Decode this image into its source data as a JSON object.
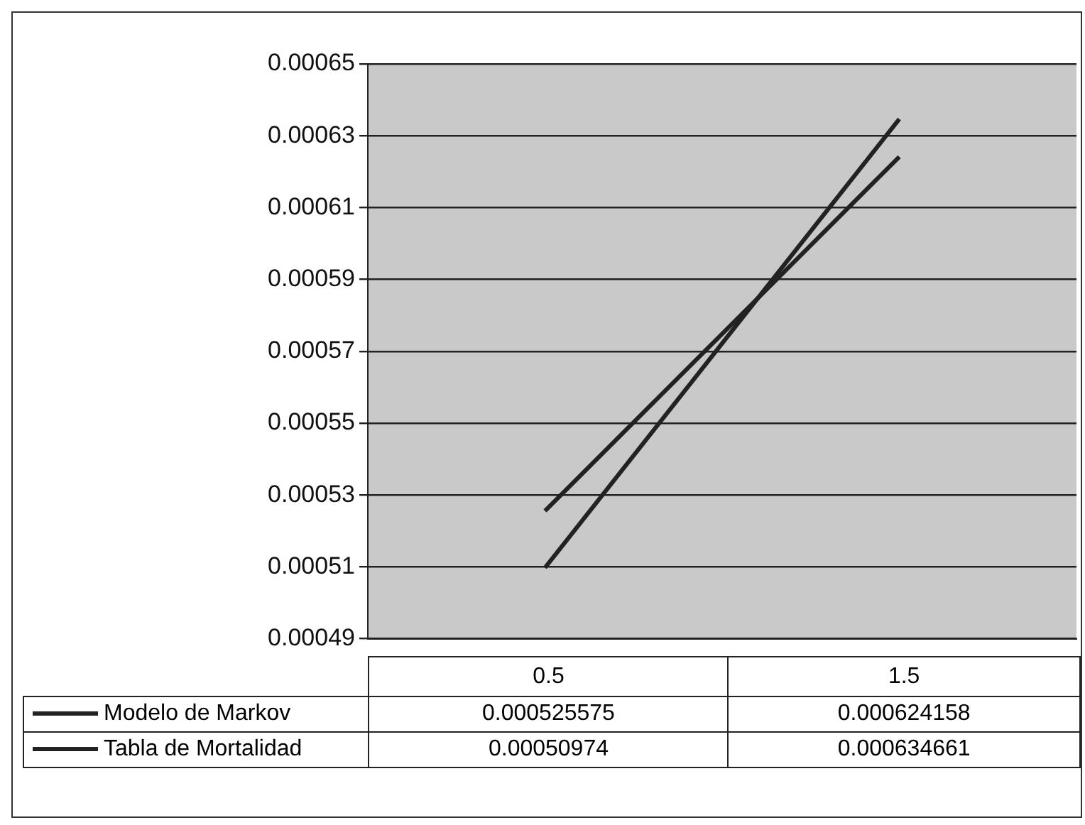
{
  "chart_data": {
    "type": "line",
    "categories": [
      "0.5",
      "1.5"
    ],
    "series": [
      {
        "name": "Modelo de Markov",
        "color": "#222222",
        "values": [
          0.000525575,
          0.000624158
        ]
      },
      {
        "name": "Tabla de Mortalidad",
        "color": "#222222",
        "values": [
          0.00050974,
          0.000634661
        ]
      }
    ],
    "ylim": [
      0.00049,
      0.00065
    ],
    "yticks": [
      {
        "value": 0.00049,
        "label": "0.00049"
      },
      {
        "value": 0.00051,
        "label": "0.00051"
      },
      {
        "value": 0.00053,
        "label": "0.00053"
      },
      {
        "value": 0.00055,
        "label": "0.00055"
      },
      {
        "value": 0.00057,
        "label": "0.00057"
      },
      {
        "value": 0.00059,
        "label": "0.00059"
      },
      {
        "value": 0.00061,
        "label": "0.00061"
      },
      {
        "value": 0.00063,
        "label": "0.00063"
      },
      {
        "value": 0.00065,
        "label": "0.00065"
      }
    ],
    "grid": "y",
    "legend": "bottom left",
    "data_labels": true,
    "marker": "none",
    "line_style": "solid"
  }
}
